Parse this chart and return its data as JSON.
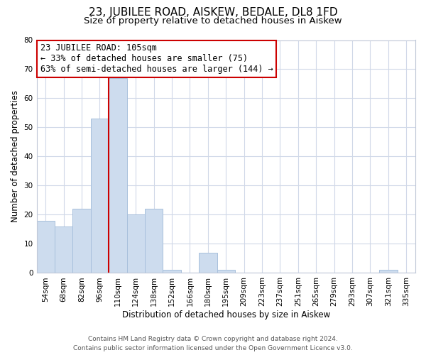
{
  "title": "23, JUBILEE ROAD, AISKEW, BEDALE, DL8 1FD",
  "subtitle": "Size of property relative to detached houses in Aiskew",
  "xlabel": "Distribution of detached houses by size in Aiskew",
  "ylabel": "Number of detached properties",
  "footer_line1": "Contains HM Land Registry data © Crown copyright and database right 2024.",
  "footer_line2": "Contains public sector information licensed under the Open Government Licence v3.0.",
  "bin_labels": [
    "54sqm",
    "68sqm",
    "82sqm",
    "96sqm",
    "110sqm",
    "124sqm",
    "138sqm",
    "152sqm",
    "166sqm",
    "180sqm",
    "195sqm",
    "209sqm",
    "223sqm",
    "237sqm",
    "251sqm",
    "265sqm",
    "279sqm",
    "293sqm",
    "307sqm",
    "321sqm",
    "335sqm"
  ],
  "bar_values": [
    18,
    16,
    22,
    53,
    67,
    20,
    22,
    1,
    0,
    7,
    1,
    0,
    0,
    0,
    0,
    0,
    0,
    0,
    0,
    1,
    0
  ],
  "bar_color": "#cddcee",
  "bar_edge_color": "#a8c0dc",
  "highlight_line_color": "#cc0000",
  "annotation_line1": "23 JUBILEE ROAD: 105sqm",
  "annotation_line2": "← 33% of detached houses are smaller (75)",
  "annotation_line3": "63% of semi-detached houses are larger (144) →",
  "annotation_box_color": "#ffffff",
  "annotation_box_edge_color": "#cc0000",
  "ylim": [
    0,
    80
  ],
  "yticks": [
    0,
    10,
    20,
    30,
    40,
    50,
    60,
    70,
    80
  ],
  "background_color": "#ffffff",
  "grid_color": "#d0d8e8",
  "title_fontsize": 11,
  "subtitle_fontsize": 9.5,
  "axis_label_fontsize": 8.5,
  "tick_fontsize": 7.5,
  "annotation_fontsize": 8.5,
  "footer_fontsize": 6.5
}
